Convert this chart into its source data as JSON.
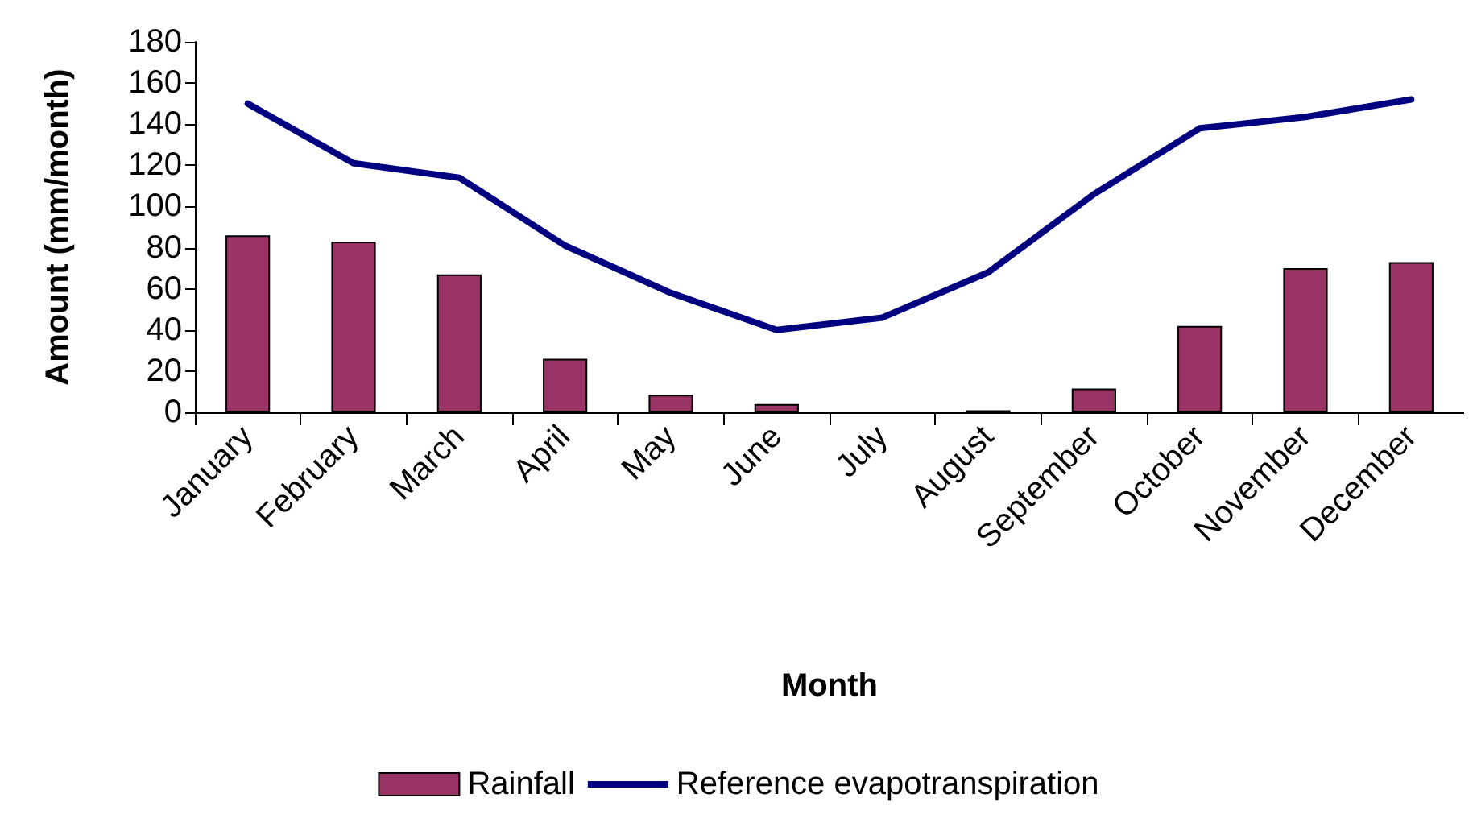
{
  "chart_data": {
    "type": "bar",
    "xlabel": "Month",
    "ylabel": "Amount (mm/month)",
    "categories": [
      "January",
      "February",
      "March",
      "April",
      "May",
      "June",
      "July",
      "August",
      "September",
      "October",
      "November",
      "December"
    ],
    "series": [
      {
        "name": "Rainfall",
        "color": "#993366",
        "values": [
          86,
          83,
          67,
          26,
          8.5,
          4,
          null,
          1,
          11.5,
          42,
          70,
          73
        ]
      },
      {
        "name": "Reference evapotranspiration",
        "type": "line",
        "color": "#000080",
        "values": [
          150,
          121,
          114,
          81,
          58,
          40,
          46,
          68,
          106,
          138,
          143.5,
          152
        ]
      }
    ],
    "ylim": [
      0,
      180
    ],
    "yticks": [
      0,
      20,
      40,
      60,
      80,
      100,
      120,
      140,
      160,
      180
    ],
    "grid": false,
    "legend": "bottom",
    "marker": "none",
    "line_style": "solid"
  }
}
